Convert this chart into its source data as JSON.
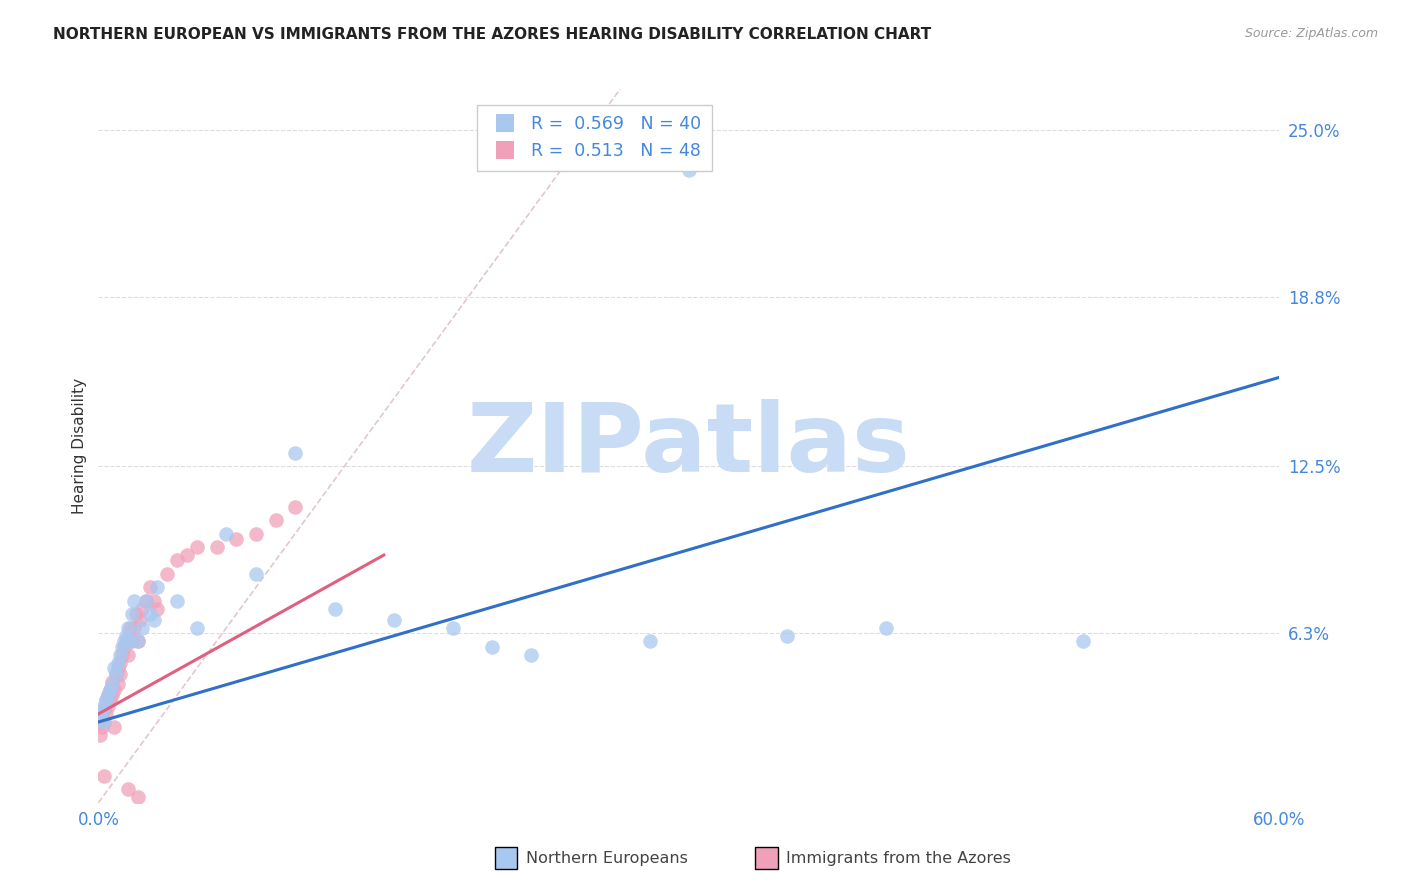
{
  "title": "NORTHERN EUROPEAN VS IMMIGRANTS FROM THE AZORES HEARING DISABILITY CORRELATION CHART",
  "source": "Source: ZipAtlas.com",
  "ylabel": "Hearing Disability",
  "xlim": [
    0.0,
    0.6
  ],
  "ylim": [
    0.0,
    0.265
  ],
  "ytick_positions": [
    0.063,
    0.125,
    0.188,
    0.25
  ],
  "ytick_labels": [
    "6.3%",
    "12.5%",
    "18.8%",
    "25.0%"
  ],
  "xtick_positions": [
    0.0,
    0.1,
    0.2,
    0.3,
    0.4,
    0.5,
    0.6
  ],
  "xtick_labels": [
    "0.0%",
    "",
    "",
    "",
    "",
    "",
    "60.0%"
  ],
  "legend1_r": "0.569",
  "legend1_n": "40",
  "legend2_r": "0.513",
  "legend2_n": "48",
  "series1_color": "#a8c8f0",
  "series2_color": "#f0a0b8",
  "trend1_color": "#3070c8",
  "trend2_color": "#e06080",
  "tick_color": "#4488dd",
  "diagonal_color": "#e0c8cc",
  "watermark": "ZIPatlas",
  "watermark_color": "#c8ddf5",
  "background_color": "#ffffff",
  "grid_color": "#dddddd",
  "series1_label": "Northern Europeans",
  "series2_label": "Immigrants from the Azores",
  "series1_x": [
    0.001,
    0.002,
    0.003,
    0.003,
    0.004,
    0.005,
    0.006,
    0.007,
    0.008,
    0.009,
    0.01,
    0.011,
    0.012,
    0.013,
    0.014,
    0.015,
    0.016,
    0.017,
    0.018,
    0.02,
    0.022,
    0.024,
    0.026,
    0.028,
    0.03,
    0.04,
    0.05,
    0.065,
    0.08,
    0.1,
    0.12,
    0.15,
    0.18,
    0.2,
    0.22,
    0.28,
    0.35,
    0.4,
    0.5,
    0.3
  ],
  "series1_y": [
    0.032,
    0.034,
    0.03,
    0.036,
    0.038,
    0.04,
    0.042,
    0.044,
    0.05,
    0.048,
    0.052,
    0.055,
    0.058,
    0.06,
    0.062,
    0.065,
    0.06,
    0.07,
    0.075,
    0.06,
    0.065,
    0.075,
    0.07,
    0.068,
    0.08,
    0.075,
    0.065,
    0.1,
    0.085,
    0.13,
    0.072,
    0.068,
    0.065,
    0.058,
    0.055,
    0.06,
    0.062,
    0.065,
    0.06,
    0.235
  ],
  "series2_x": [
    0.001,
    0.001,
    0.002,
    0.002,
    0.003,
    0.003,
    0.004,
    0.004,
    0.005,
    0.005,
    0.006,
    0.006,
    0.007,
    0.007,
    0.008,
    0.008,
    0.009,
    0.01,
    0.01,
    0.011,
    0.011,
    0.012,
    0.013,
    0.014,
    0.015,
    0.016,
    0.017,
    0.018,
    0.019,
    0.02,
    0.021,
    0.022,
    0.024,
    0.026,
    0.028,
    0.03,
    0.035,
    0.04,
    0.045,
    0.05,
    0.06,
    0.07,
    0.08,
    0.09,
    0.1,
    0.003,
    0.015,
    0.02
  ],
  "series2_y": [
    0.025,
    0.03,
    0.028,
    0.032,
    0.03,
    0.035,
    0.033,
    0.038,
    0.036,
    0.04,
    0.038,
    0.042,
    0.04,
    0.045,
    0.042,
    0.028,
    0.048,
    0.044,
    0.05,
    0.048,
    0.052,
    0.055,
    0.058,
    0.06,
    0.055,
    0.065,
    0.06,
    0.065,
    0.07,
    0.06,
    0.068,
    0.072,
    0.075,
    0.08,
    0.075,
    0.072,
    0.085,
    0.09,
    0.092,
    0.095,
    0.095,
    0.098,
    0.1,
    0.105,
    0.11,
    0.01,
    0.005,
    0.002
  ],
  "trend1_x0": 0.0,
  "trend1_y0": 0.03,
  "trend1_x1": 0.6,
  "trend1_y1": 0.158,
  "trend2_x0": 0.0,
  "trend2_y0": 0.033,
  "trend2_x1": 0.145,
  "trend2_y1": 0.092
}
